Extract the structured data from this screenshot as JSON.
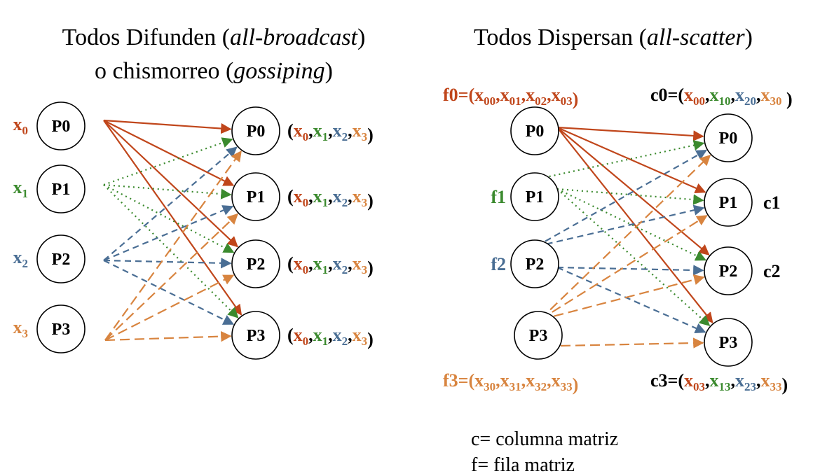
{
  "colors": {
    "red": "#c0461b",
    "green": "#3b8a2e",
    "blue": "#4a6e94",
    "orange": "#d8843f",
    "black": "#000000"
  },
  "left": {
    "title_line1_prefix": "Todos Difunden (",
    "title_line1_italic": "all-broadcast",
    "title_line1_suffix": ")",
    "title_line2_prefix": "o chismorreo (",
    "title_line2_italic": "gossiping",
    "title_line2_suffix": ")",
    "sources": [
      {
        "node": "P0",
        "input": "x",
        "input_sub": "0",
        "color": "red"
      },
      {
        "node": "P1",
        "input": "x",
        "input_sub": "1",
        "color": "green"
      },
      {
        "node": "P2",
        "input": "x",
        "input_sub": "2",
        "color": "blue"
      },
      {
        "node": "P3",
        "input": "x",
        "input_sub": "3",
        "color": "orange"
      }
    ],
    "targets": [
      "P0",
      "P1",
      "P2",
      "P3"
    ],
    "results": [
      {
        "open": "(",
        "close": ")",
        "items": [
          {
            "t": "x",
            "s": "0",
            "c": "red"
          },
          {
            "t": "x",
            "s": "1",
            "c": "green"
          },
          {
            "t": "x",
            "s": "2",
            "c": "blue"
          },
          {
            "t": "x",
            "s": "3",
            "c": "orange"
          }
        ]
      },
      {
        "open": "(",
        "close": ")",
        "items": [
          {
            "t": "x",
            "s": "0",
            "c": "red"
          },
          {
            "t": "x",
            "s": "1",
            "c": "green"
          },
          {
            "t": "x",
            "s": "2",
            "c": "blue"
          },
          {
            "t": "x",
            "s": "3",
            "c": "orange"
          }
        ]
      },
      {
        "open": "(",
        "close": ")",
        "items": [
          {
            "t": "x",
            "s": "0",
            "c": "red"
          },
          {
            "t": "x",
            "s": "1",
            "c": "green"
          },
          {
            "t": "x",
            "s": "2",
            "c": "blue"
          },
          {
            "t": "x",
            "s": "3",
            "c": "orange"
          }
        ]
      },
      {
        "open": "(",
        "close": ")",
        "items": [
          {
            "t": "x",
            "s": "0",
            "c": "red"
          },
          {
            "t": "x",
            "s": "1",
            "c": "green"
          },
          {
            "t": "x",
            "s": "2",
            "c": "blue"
          },
          {
            "t": "x",
            "s": "3",
            "c": "orange"
          }
        ]
      }
    ]
  },
  "right": {
    "title_prefix": "Todos Dispersan (",
    "title_italic": "all-scatter",
    "title_suffix": ")",
    "sources": [
      {
        "node": "P0",
        "label": "",
        "color": "red"
      },
      {
        "node": "P1",
        "label": "f1",
        "color": "green"
      },
      {
        "node": "P2",
        "label": "f2",
        "color": "blue"
      },
      {
        "node": "P3",
        "label": "",
        "color": "orange"
      }
    ],
    "targets": [
      {
        "node": "P0",
        "label": ""
      },
      {
        "node": "P1",
        "label": "c1"
      },
      {
        "node": "P2",
        "label": "c2"
      },
      {
        "node": "P3",
        "label": ""
      }
    ],
    "f0": {
      "name": "f0",
      "color": "red",
      "items": [
        {
          "t": "x",
          "s": "00",
          "c": "red"
        },
        {
          "t": "x",
          "s": "01",
          "c": "red"
        },
        {
          "t": "x",
          "s": "02",
          "c": "red"
        },
        {
          "t": "x",
          "s": "03",
          "c": "red"
        }
      ]
    },
    "f3": {
      "name": "f3",
      "color": "orange",
      "items": [
        {
          "t": "x",
          "s": "30",
          "c": "orange"
        },
        {
          "t": "x",
          "s": "31",
          "c": "orange"
        },
        {
          "t": "x",
          "s": "32",
          "c": "orange"
        },
        {
          "t": "x",
          "s": "33",
          "c": "orange"
        }
      ]
    },
    "c0": {
      "name": "c0",
      "color": "black",
      "items": [
        {
          "t": "x",
          "s": "00",
          "c": "red"
        },
        {
          "t": "x",
          "s": "10",
          "c": "green"
        },
        {
          "t": "x",
          "s": "20",
          "c": "blue"
        },
        {
          "t": "x",
          "s": "30",
          "c": "orange"
        }
      ]
    },
    "c3": {
      "name": "c3",
      "color": "black",
      "items": [
        {
          "t": "x",
          "s": "03",
          "c": "red"
        },
        {
          "t": "x",
          "s": "13",
          "c": "green"
        },
        {
          "t": "x",
          "s": "23",
          "c": "blue"
        },
        {
          "t": "x",
          "s": "33",
          "c": "orange"
        }
      ]
    }
  },
  "legend": {
    "line1": "c= columna matriz",
    "line2": "f= fila matriz"
  }
}
